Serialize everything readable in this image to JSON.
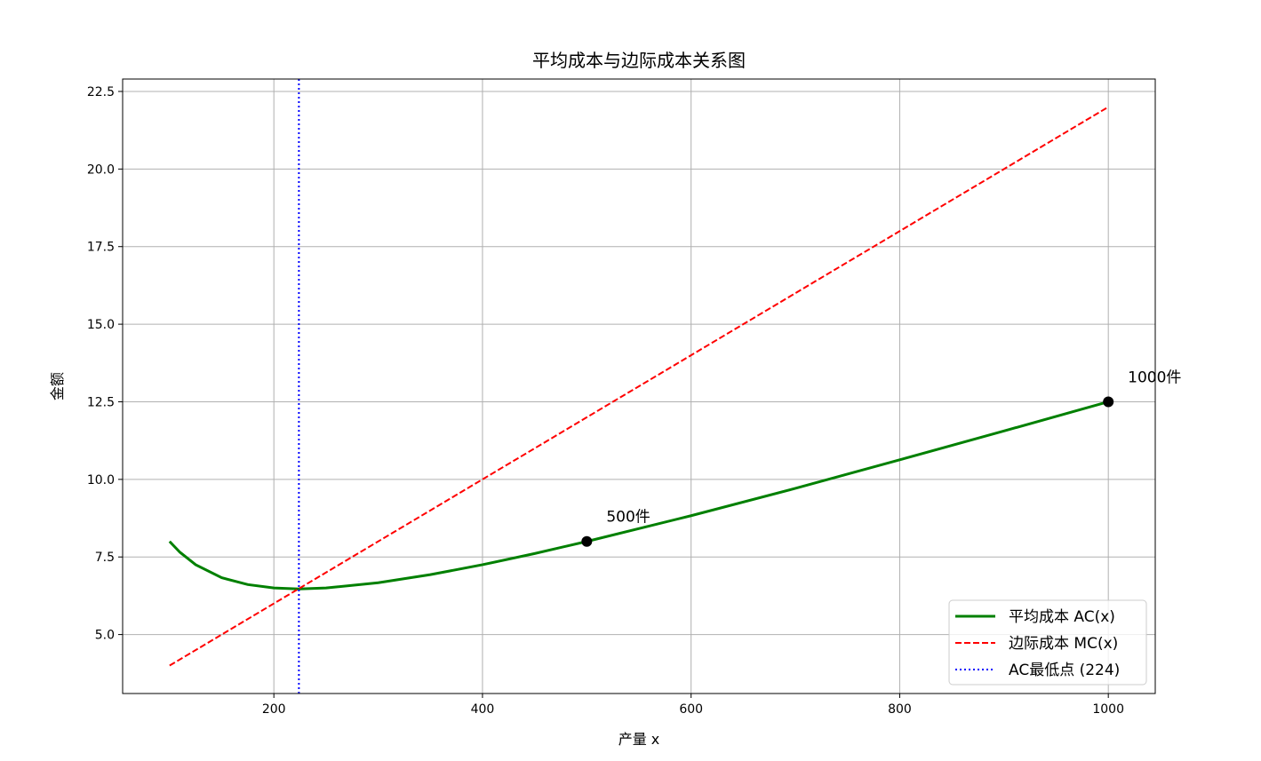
{
  "chart_data": {
    "type": "line",
    "title": "平均成本与边际成本关系图",
    "xlabel": "产量 x",
    "ylabel": "金额",
    "xlim": [
      55,
      1045
    ],
    "ylim": [
      3.1,
      22.9
    ],
    "xticks": [
      200,
      400,
      600,
      800,
      1000
    ],
    "xtick_labels": [
      "200",
      "400",
      "600",
      "800",
      "1000"
    ],
    "yticks": [
      5.0,
      7.5,
      10.0,
      12.5,
      15.0,
      17.5,
      20.0,
      22.5
    ],
    "ytick_labels": [
      "5.0",
      "7.5",
      "10.0",
      "12.5",
      "15.0",
      "17.5",
      "20.0",
      "22.5"
    ],
    "grid": true,
    "legend_placement": "lower-right",
    "series": [
      {
        "name": "平均成本 AC(x)",
        "color": "#008000",
        "style": "solid",
        "x": [
          100,
          110,
          125,
          150,
          175,
          200,
          224,
          250,
          300,
          350,
          400,
          450,
          500,
          600,
          700,
          800,
          900,
          1000
        ],
        "y": [
          8.0,
          7.65,
          7.25,
          6.83,
          6.61,
          6.5,
          6.47,
          6.5,
          6.67,
          6.93,
          7.25,
          7.61,
          8.0,
          8.83,
          9.71,
          10.63,
          11.56,
          12.5
        ]
      },
      {
        "name": "边际成本 MC(x)",
        "color": "#ff0000",
        "style": "dashed",
        "x": [
          100,
          1000
        ],
        "y": [
          4.0,
          22.0
        ]
      },
      {
        "name": "AC最低点 (224)",
        "color": "#0000ff",
        "style": "dotted",
        "vline_x": 224
      }
    ],
    "points": [
      {
        "x": 500,
        "y": 8.0,
        "label": "500件"
      },
      {
        "x": 1000,
        "y": 12.5,
        "label": "1000件"
      }
    ]
  }
}
